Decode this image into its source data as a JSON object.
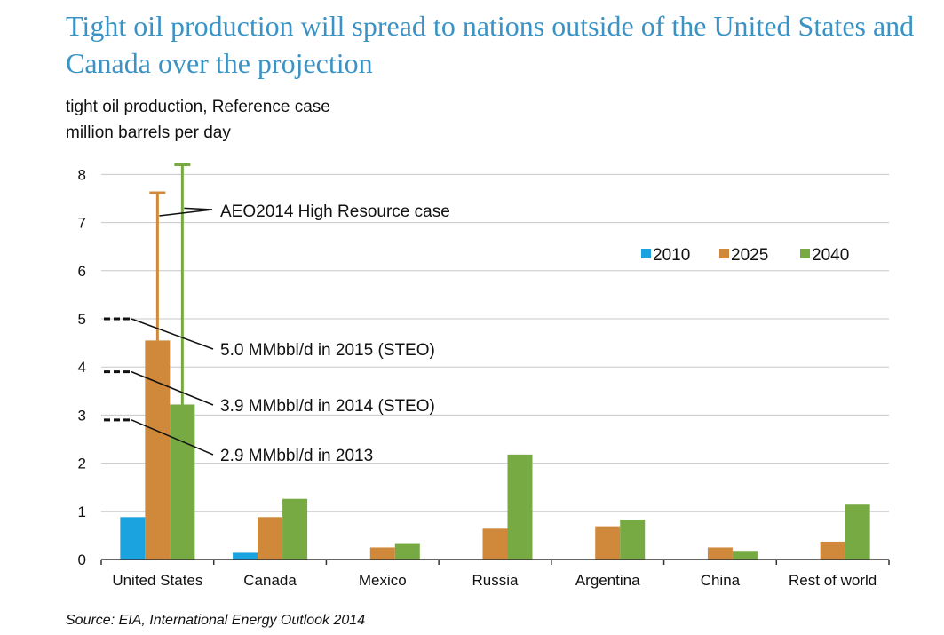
{
  "title": "Tight oil production will spread to nations outside of the United States and Canada over the projection",
  "subtitle_line1": "tight oil production, Reference case",
  "subtitle_line2": "million barrels per day",
  "source": "Source:  EIA, International Energy Outlook 2014",
  "colors": {
    "2010": "#1aa3de",
    "2025": "#d0893a",
    "2040": "#78aa44",
    "grid": "#c8c8c8",
    "axis": "#333333",
    "title": "#3a93c4"
  },
  "chart_data": {
    "type": "bar",
    "categories": [
      "United States",
      "Canada",
      "Mexico",
      "Russia",
      "Argentina",
      "China",
      "Rest of world"
    ],
    "series": [
      {
        "name": "2010",
        "values": [
          0.88,
          0.14,
          0,
          0,
          0,
          0,
          0
        ]
      },
      {
        "name": "2025",
        "values": [
          4.55,
          0.88,
          0.25,
          0.64,
          0.69,
          0.25,
          0.37
        ]
      },
      {
        "name": "2040",
        "values": [
          3.22,
          1.26,
          0.34,
          2.18,
          0.83,
          0.18,
          1.14
        ]
      }
    ],
    "high_resource_case": {
      "label": "AEO2014 High Resource case",
      "category": "United States",
      "values": [
        {
          "series": "2025",
          "value": 7.62
        },
        {
          "series": "2040",
          "value": 8.2
        }
      ]
    },
    "reference_marks": [
      {
        "value": 5.0,
        "label": "5.0 MMbbl/d in 2015 (STEO)"
      },
      {
        "value": 3.9,
        "label": "3.9 MMbbl/d in 2014 (STEO)"
      },
      {
        "value": 2.9,
        "label": "2.9 MMbbl/d in 2013"
      }
    ],
    "ylim": [
      0,
      8
    ],
    "yticks": [
      "0",
      "1",
      "2",
      "3",
      "4",
      "5",
      "6",
      "7",
      "8"
    ],
    "grid": true,
    "legend_position": "top-right"
  }
}
